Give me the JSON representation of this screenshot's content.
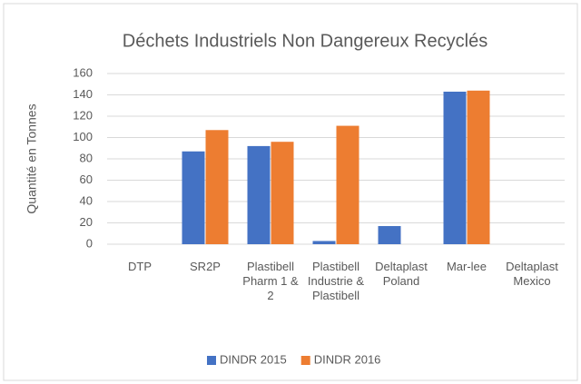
{
  "chart_data": {
    "type": "bar",
    "title": "Déchets Industriels Non Dangereux Recyclés",
    "ylabel": "Quantité en Tonnes",
    "categories": [
      "DTP",
      "SR2P",
      "Plastibell Pharm 1 & 2",
      "Plastibell Industrie & Plastibell",
      "Deltaplast Poland",
      "Mar-lee",
      "Deltaplast Mexico"
    ],
    "series": [
      {
        "name": "DINDR 2015",
        "color": "#4472c4",
        "values": [
          0,
          87,
          92,
          3,
          17,
          143,
          0
        ]
      },
      {
        "name": "DINDR 2016",
        "color": "#ed7d31",
        "values": [
          0,
          107,
          96,
          111,
          0,
          144,
          0
        ]
      }
    ],
    "ylim": [
      0,
      160
    ],
    "yticks": [
      0,
      20,
      40,
      60,
      80,
      100,
      120,
      140,
      160
    ],
    "grid": true,
    "legend": "bottom"
  }
}
